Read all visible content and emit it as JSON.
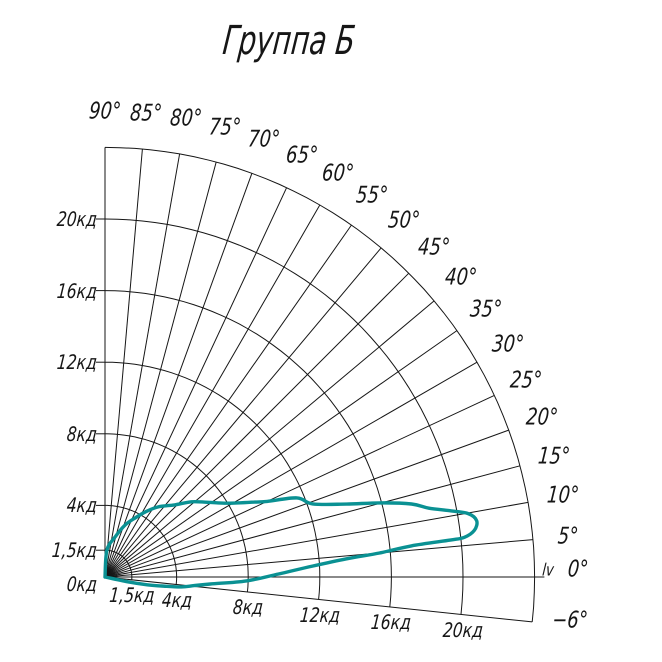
{
  "title": "Группа Б",
  "colors": {
    "curve": "#0a9193",
    "grid": "#161616",
    "text": "#161616",
    "background": "#ffffff"
  },
  "labels": {
    "zero_axis_prefix": "lv",
    "angle_labels": [
      {
        "deg": 90,
        "text": "90°"
      },
      {
        "deg": 85,
        "text": "85°"
      },
      {
        "deg": 80,
        "text": "80°"
      },
      {
        "deg": 75,
        "text": "75°"
      },
      {
        "deg": 70,
        "text": "70°"
      },
      {
        "deg": 65,
        "text": "65°"
      },
      {
        "deg": 60,
        "text": "60°"
      },
      {
        "deg": 55,
        "text": "55°"
      },
      {
        "deg": 50,
        "text": "50°"
      },
      {
        "deg": 45,
        "text": "45°"
      },
      {
        "deg": 40,
        "text": "40°"
      },
      {
        "deg": 35,
        "text": "35°"
      },
      {
        "deg": 30,
        "text": "30°"
      },
      {
        "deg": 25,
        "text": "25°"
      },
      {
        "deg": 20,
        "text": "20°"
      },
      {
        "deg": 15,
        "text": "15°"
      },
      {
        "deg": 10,
        "text": "10°"
      },
      {
        "deg": 5,
        "text": "5°"
      },
      {
        "deg": 0,
        "text": "0°"
      },
      {
        "deg": -6,
        "text": "−6°"
      }
    ],
    "left_tick_labels": [
      {
        "kd": 20,
        "text": "20кд"
      },
      {
        "kd": 16,
        "text": "16кд"
      },
      {
        "kd": 12,
        "text": "12кд"
      },
      {
        "kd": 8,
        "text": "8кд"
      },
      {
        "kd": 4,
        "text": "4кд"
      },
      {
        "kd": 1.5,
        "text": "1,5кд"
      },
      {
        "kd": 0,
        "text": "0кд"
      }
    ],
    "bottom_tick_labels": [
      {
        "kd": 1.5,
        "text": "1,5кд"
      },
      {
        "kd": 4,
        "text": "4кд"
      },
      {
        "kd": 8,
        "text": "8кд"
      },
      {
        "kd": 12,
        "text": "12кд"
      },
      {
        "kd": 16,
        "text": "16кд"
      },
      {
        "kd": 20,
        "text": "20кд"
      }
    ]
  },
  "chart_data": {
    "type": "line",
    "subtype": "polar-luminous-intensity-diagram",
    "title": "Группа Б",
    "units": "кд",
    "angle_range_deg": [
      -6,
      90
    ],
    "angle_grid_step_deg": 5,
    "extra_angle_lines_deg": [
      -6
    ],
    "radial_ticks_kd": [
      0,
      1.5,
      4,
      8,
      12,
      16,
      20
    ],
    "radial_max_kd": 24,
    "grid": true,
    "series": [
      {
        "name": "Группа Б",
        "points_deg_kd": [
          [
            0,
            0
          ],
          [
            86,
            1.5
          ],
          [
            76,
            2.3
          ],
          [
            69,
            3.1
          ],
          [
            63,
            3.7
          ],
          [
            58,
            4.3
          ],
          [
            53,
            4.9
          ],
          [
            46,
            5.6
          ],
          [
            41,
            6.4
          ],
          [
            36,
            7.1
          ],
          [
            31,
            8.0
          ],
          [
            27,
            9.2
          ],
          [
            25,
            10.0
          ],
          [
            22.4,
            11.6
          ],
          [
            19.4,
            12.3
          ],
          [
            16.8,
            14.1
          ],
          [
            15.1,
            15.9
          ],
          [
            13.4,
            17.6
          ],
          [
            12,
            18.5
          ],
          [
            10.8,
            19.7
          ],
          [
            9.9,
            20.6
          ],
          [
            8.6,
            21.0
          ],
          [
            7.2,
            20.8
          ],
          [
            6.3,
            20.2
          ],
          [
            6.1,
            19.4
          ],
          [
            5.8,
            17.2
          ],
          [
            5.0,
            15.4
          ],
          [
            4.3,
            13.5
          ],
          [
            3.0,
            11.6
          ],
          [
            1.0,
            9.7
          ],
          [
            -1.6,
            7.9
          ],
          [
            -3.8,
            5.9
          ],
          [
            -5.5,
            5.0
          ],
          [
            -7.4,
            4.3
          ],
          [
            -9.0,
            3.2
          ],
          [
            -10.5,
            2.4
          ],
          [
            -12,
            1.3
          ],
          [
            0,
            0
          ]
        ],
        "peak": {
          "kd": 21,
          "at_deg": 8.6
        }
      }
    ]
  }
}
